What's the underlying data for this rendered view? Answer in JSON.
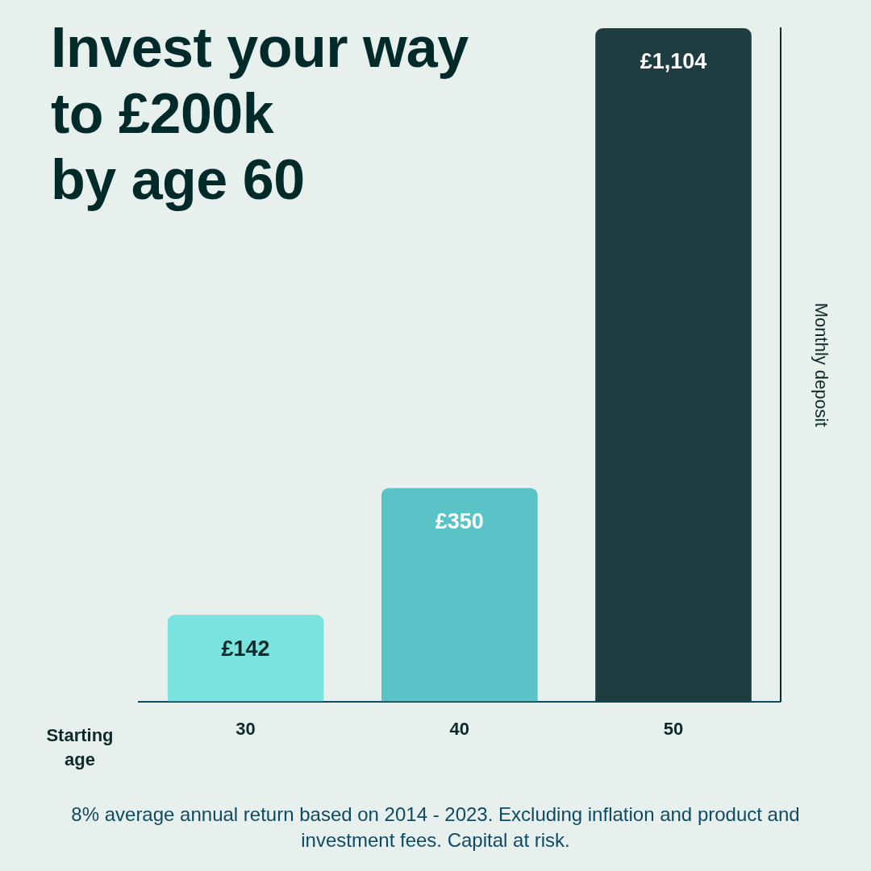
{
  "chart_data": {
    "type": "bar",
    "title": "Invest your way\nto £200k\nby age 60",
    "xlabel": "Starting age",
    "ylabel": "Monthly deposit",
    "categories": [
      "30",
      "40",
      "50"
    ],
    "values": [
      142,
      350,
      1104
    ],
    "colors": [
      "#7ae3df",
      "#59c3c7",
      "#1d3d40"
    ],
    "value_labels": [
      "£142",
      "£350",
      "£1,104"
    ],
    "ylim": [
      0,
      1104
    ],
    "tick_labels": "x",
    "annotations": [
      "8% average annual return based on 2014 - 2023. Excluding inflation and product and investment fees. Capital at risk."
    ]
  }
}
